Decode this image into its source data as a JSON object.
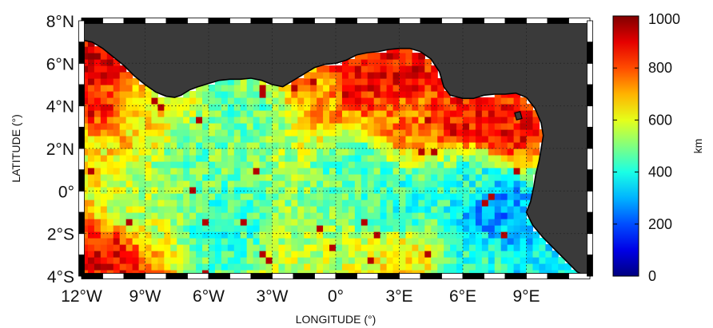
{
  "chart_data": {
    "type": "heatmap",
    "title": "",
    "xlabel": "LONGITUDE (°)",
    "ylabel": "LATITUDE (°)",
    "xlim": [
      -12,
      12
    ],
    "ylim": [
      -4,
      8
    ],
    "x_ticks": [
      {
        "value": -12,
        "label": "12°W"
      },
      {
        "value": -9,
        "label": "9°W"
      },
      {
        "value": -6,
        "label": "6°W"
      },
      {
        "value": -3,
        "label": "3°W"
      },
      {
        "value": 0,
        "label": "0°"
      },
      {
        "value": 3,
        "label": "3°E"
      },
      {
        "value": 6,
        "label": "6°E"
      },
      {
        "value": 9,
        "label": "9°E"
      }
    ],
    "y_ticks": [
      {
        "value": 8,
        "label": "8°N"
      },
      {
        "value": 6,
        "label": "6°N"
      },
      {
        "value": 4,
        "label": "4°N"
      },
      {
        "value": 2,
        "label": "2°N"
      },
      {
        "value": 0,
        "label": "0°"
      },
      {
        "value": -2,
        "label": "2°S"
      },
      {
        "value": -4,
        "label": "4°S"
      }
    ],
    "grid": true,
    "colorbar": {
      "label": "km",
      "range": [
        0,
        1000
      ],
      "ticks": [
        0,
        200,
        400,
        600,
        800,
        1000
      ],
      "colormap": "jet",
      "placement": "right"
    },
    "land_color": "#3a3a3a",
    "coastline": [
      [
        -12,
        7.1
      ],
      [
        -11.5,
        7.0
      ],
      [
        -11.0,
        6.7
      ],
      [
        -10.5,
        6.3
      ],
      [
        -10.0,
        5.9
      ],
      [
        -9.5,
        5.4
      ],
      [
        -9.0,
        5.0
      ],
      [
        -8.5,
        4.65
      ],
      [
        -8.0,
        4.45
      ],
      [
        -7.6,
        4.4
      ],
      [
        -7.3,
        4.5
      ],
      [
        -6.9,
        4.75
      ],
      [
        -6.5,
        4.9
      ],
      [
        -6.0,
        5.05
      ],
      [
        -5.5,
        5.2
      ],
      [
        -5.0,
        5.25
      ],
      [
        -4.5,
        5.25
      ],
      [
        -4.0,
        5.3
      ],
      [
        -3.5,
        5.2
      ],
      [
        -3.0,
        5.0
      ],
      [
        -2.5,
        4.9
      ],
      [
        -2.0,
        5.2
      ],
      [
        -1.5,
        5.5
      ],
      [
        -1.0,
        5.8
      ],
      [
        -0.5,
        5.95
      ],
      [
        0.0,
        6.0
      ],
      [
        0.5,
        6.15
      ],
      [
        1.0,
        6.4
      ],
      [
        1.5,
        6.5
      ],
      [
        2.0,
        6.55
      ],
      [
        2.5,
        6.65
      ],
      [
        3.0,
        6.7
      ],
      [
        3.5,
        6.7
      ],
      [
        4.0,
        6.55
      ],
      [
        4.5,
        6.2
      ],
      [
        4.9,
        5.6
      ],
      [
        5.1,
        4.9
      ],
      [
        5.4,
        4.5
      ],
      [
        6.0,
        4.35
      ],
      [
        6.5,
        4.35
      ],
      [
        7.0,
        4.5
      ],
      [
        7.5,
        4.55
      ],
      [
        8.0,
        4.55
      ],
      [
        8.5,
        4.6
      ],
      [
        9.0,
        4.4
      ],
      [
        9.4,
        3.9
      ],
      [
        9.7,
        3.2
      ],
      [
        9.8,
        2.6
      ],
      [
        9.7,
        2.0
      ],
      [
        9.6,
        1.4
      ],
      [
        9.45,
        0.8
      ],
      [
        9.35,
        0.2
      ],
      [
        9.2,
        -0.5
      ],
      [
        9.0,
        -1.0
      ],
      [
        9.3,
        -1.6
      ],
      [
        9.8,
        -2.2
      ],
      [
        10.4,
        -2.8
      ],
      [
        11.0,
        -3.4
      ],
      [
        11.4,
        -3.8
      ],
      [
        11.8,
        -4.0
      ]
    ],
    "field_model": {
      "description_source": "read from colour field",
      "cell_size_deg": 0.3,
      "anchors": [
        {
          "lon": -11.5,
          "lat": 6.0,
          "value": 900
        },
        {
          "lon": -11.0,
          "lat": 4.0,
          "value": 820
        },
        {
          "lon": -11.5,
          "lat": 1.5,
          "value": 640
        },
        {
          "lon": -11.0,
          "lat": -3.3,
          "value": 880
        },
        {
          "lon": -9.0,
          "lat": 3.5,
          "value": 640
        },
        {
          "lon": -9.5,
          "lat": -0.5,
          "value": 560
        },
        {
          "lon": -7.0,
          "lat": 1.5,
          "value": 480
        },
        {
          "lon": -5.0,
          "lat": -1.5,
          "value": 430
        },
        {
          "lon": -4.0,
          "lat": 3.8,
          "value": 480
        },
        {
          "lon": -1.0,
          "lat": 4.8,
          "value": 720
        },
        {
          "lon": -2.0,
          "lat": -3.3,
          "value": 560
        },
        {
          "lon": 1.0,
          "lat": 5.6,
          "value": 860
        },
        {
          "lon": 1.0,
          "lat": 1.0,
          "value": 460
        },
        {
          "lon": 3.0,
          "lat": 5.6,
          "value": 880
        },
        {
          "lon": 3.5,
          "lat": 3.5,
          "value": 760
        },
        {
          "lon": 3.0,
          "lat": -0.5,
          "value": 420
        },
        {
          "lon": 3.0,
          "lat": -3.3,
          "value": 640
        },
        {
          "lon": 6.0,
          "lat": 3.6,
          "value": 860
        },
        {
          "lon": 8.0,
          "lat": 3.0,
          "value": 860
        },
        {
          "lon": 6.5,
          "lat": 0.5,
          "value": 420
        },
        {
          "lon": 7.5,
          "lat": -0.8,
          "value": 260
        },
        {
          "lon": 8.5,
          "lat": -2.0,
          "value": 300
        },
        {
          "lon": 7.0,
          "lat": -3.3,
          "value": 420
        },
        {
          "lon": 10.0,
          "lat": -3.5,
          "value": 380
        }
      ]
    }
  }
}
